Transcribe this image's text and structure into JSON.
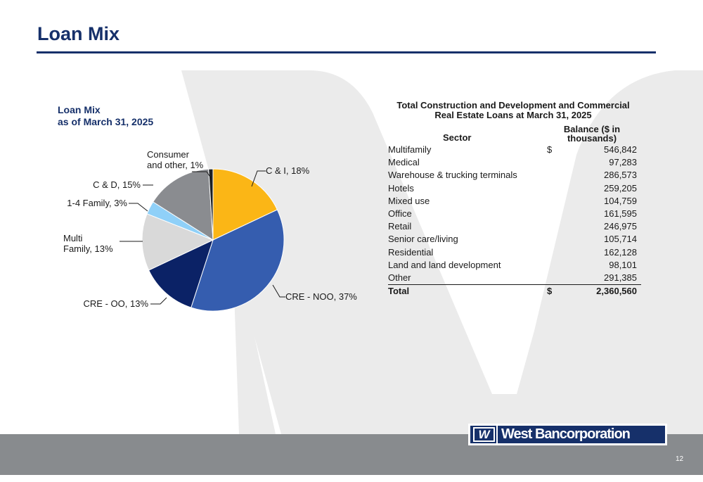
{
  "slide": {
    "title": "Loan Mix",
    "page_number": "12",
    "logo_mark": "W",
    "logo_text": "West Bancorporation",
    "colors": {
      "brand_navy": "#16306a",
      "footer_gray": "#888b8e",
      "watermark_gray": "#ebebeb"
    }
  },
  "chart_data": {
    "type": "pie",
    "title": "Loan Mix\nas of March 31, 2025",
    "title_lines": [
      "Loan Mix",
      "as of March 31, 2025"
    ],
    "slices": [
      {
        "label": "C & I",
        "value": 18,
        "display": "C & I, 18%",
        "color": "#fbb616"
      },
      {
        "label": "CRE - NOO",
        "value": 37,
        "display": "CRE - NOO, 37%",
        "color": "#355daf"
      },
      {
        "label": "CRE - OO",
        "value": 13,
        "display": "CRE - OO, 13%",
        "color": "#0b2266"
      },
      {
        "label": "Multi Family",
        "value": 13,
        "display_lines": [
          "Multi",
          "Family, 13%"
        ],
        "color": "#d9d9d9"
      },
      {
        "label": "1-4 Family",
        "value": 3,
        "display": "1-4 Family, 3%",
        "color": "#8fd0f8"
      },
      {
        "label": "C & D",
        "value": 15,
        "display": "C & D, 15%",
        "color": "#8a8c90"
      },
      {
        "label": "Consumer and other",
        "value": 1,
        "display_lines": [
          "Consumer",
          "and other, 1%"
        ],
        "color": "#1c2025"
      }
    ]
  },
  "table": {
    "title_lines": [
      "Total Construction and Development and Commercial",
      "Real Estate Loans at March 31, 2025"
    ],
    "header_sector": "Sector",
    "header_balance_lines": [
      "Balance ($ in",
      "thousands)"
    ],
    "rows": [
      {
        "sector": "Multifamily",
        "currency": "$",
        "value": "546,842"
      },
      {
        "sector": "Medical",
        "currency": "",
        "value": "97,283"
      },
      {
        "sector": "Warehouse & trucking terminals",
        "currency": "",
        "value": "286,573"
      },
      {
        "sector": "Hotels",
        "currency": "",
        "value": "259,205"
      },
      {
        "sector": "Mixed use",
        "currency": "",
        "value": "104,759"
      },
      {
        "sector": "Office",
        "currency": "",
        "value": "161,595"
      },
      {
        "sector": "Retail",
        "currency": "",
        "value": "246,975"
      },
      {
        "sector": "Senior care/living",
        "currency": "",
        "value": "105,714"
      },
      {
        "sector": "Residential",
        "currency": "",
        "value": "162,128"
      },
      {
        "sector": "Land and land development",
        "currency": "",
        "value": "98,101"
      },
      {
        "sector": "Other",
        "currency": "",
        "value": "291,385"
      }
    ],
    "total": {
      "sector": "Total",
      "currency": "$",
      "value": "2,360,560"
    }
  }
}
